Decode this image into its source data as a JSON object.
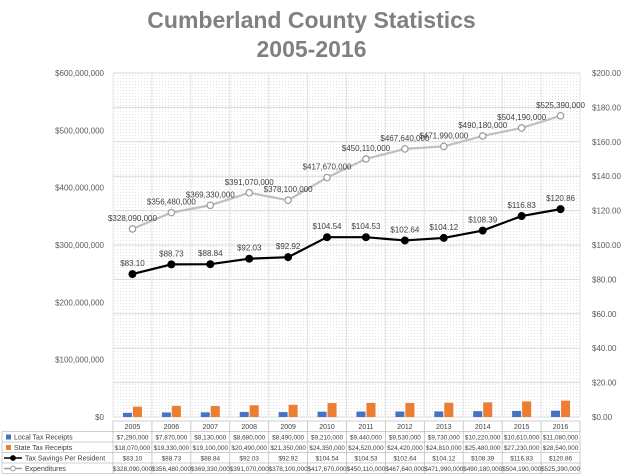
{
  "chart_data": {
    "type": "bar",
    "title_line1": "Cumberland County Statistics",
    "title_line2": "2005-2016",
    "categories": [
      "2005",
      "2006",
      "2007",
      "2008",
      "2009",
      "2010",
      "2011",
      "2012",
      "2013",
      "2014",
      "2015",
      "2016"
    ],
    "left_axis": {
      "ylim": [
        0,
        600000000
      ],
      "ticks": [
        "$0",
        "$100,000,000",
        "$200,000,000",
        "$300,000,000",
        "$400,000,000",
        "$500,000,000",
        "$600,000,000"
      ]
    },
    "right_axis": {
      "ylim": [
        0,
        200
      ],
      "ticks": [
        "$0.00",
        "$20.00",
        "$40.00",
        "$60.00",
        "$80.00",
        "$100.00",
        "$120.00",
        "$140.00",
        "$160.00",
        "$180.00",
        "$200.00"
      ]
    },
    "grid": true,
    "legend": "table-bottom",
    "series": [
      {
        "name": "Local Tax Receipts",
        "kind": "bar",
        "axis": "left",
        "color": "#4472C4",
        "marker": "square",
        "values": [
          7290000,
          7870000,
          8130000,
          8680000,
          8490000,
          9210000,
          9440000,
          9530000,
          9730000,
          10220000,
          10610000,
          11080000
        ],
        "table_labels": [
          "$7,290,000",
          "$7,870,000",
          "$8,130,000",
          "$8,680,000",
          "$8,490,000",
          "$9,210,000",
          "$9,440,000",
          "$9,530,000",
          "$9,730,000",
          "$10,220,000",
          "$10,610,000",
          "$11,080,000"
        ]
      },
      {
        "name": "State Tax Receipts",
        "kind": "bar",
        "axis": "left",
        "color": "#ED7D31",
        "marker": "square",
        "values": [
          18070000,
          19330000,
          19100000,
          20490000,
          21350000,
          24350000,
          24520000,
          24420000,
          24810000,
          25480000,
          27230000,
          28540000
        ],
        "table_labels": [
          "$18,070,000",
          "$19,330,000",
          "$19,100,000",
          "$20,490,000",
          "$21,350,000",
          "$24,350,000",
          "$24,520,000",
          "$24,420,000",
          "$24,810,000",
          "$25,480,000",
          "$27,230,000",
          "$28,540,000"
        ]
      },
      {
        "name": "Tax Savings Per Resident",
        "kind": "line",
        "axis": "right",
        "color": "#000000",
        "marker": "filled-circle",
        "values": [
          83.1,
          88.73,
          88.84,
          92.03,
          92.92,
          104.54,
          104.53,
          102.64,
          104.12,
          108.39,
          116.83,
          120.86
        ],
        "point_labels": [
          "$83.10",
          "$88.73",
          "$88.84",
          "$92.03",
          "$92.92",
          "$104.54",
          "$104.53",
          "$102.64",
          "$104.12",
          "$108.39",
          "$116.83",
          "$120.86"
        ],
        "table_labels": [
          "$83.10",
          "$88.73",
          "$88.84",
          "$92.03",
          "$92.92",
          "$104.54",
          "$104.53",
          "$102.64",
          "$104.12",
          "$108.39",
          "$116.83",
          "$120.86"
        ]
      },
      {
        "name": "Expenditures",
        "kind": "line",
        "axis": "left",
        "color": "#BFBFBF",
        "marker": "hollow-circle",
        "values": [
          328090000,
          356480000,
          369330000,
          391070000,
          378100000,
          417670000,
          450110000,
          467640000,
          471990000,
          490180000,
          504190000,
          525390000
        ],
        "point_labels": [
          "$328,090,000",
          "$356,480,000",
          "$369,330,000",
          "$391,070,000",
          "$378,100,000",
          "$417,670,000",
          "$450,110,000",
          "$467,640,000",
          "$471,990,000",
          "$490,180,000",
          "$504,190,000",
          "$525,390,000"
        ],
        "table_labels": [
          "$328,090,000",
          "$356,480,000",
          "$369,330,000",
          "$391,070,000",
          "$378,100,000",
          "$417,670,000",
          "$450,110,000",
          "$467,640,000",
          "$471,990,000",
          "$490,180,000",
          "$504,190,000",
          "$525,390,000"
        ]
      }
    ]
  }
}
